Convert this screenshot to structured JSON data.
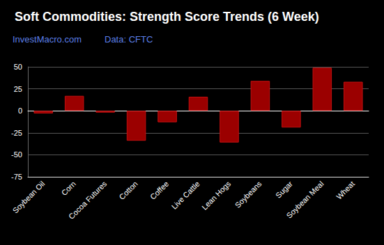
{
  "chart_data": {
    "type": "bar",
    "title": "Soft Commodities: Strength Score Trends (6 Week)",
    "subtitle": "InvestMacro.com",
    "source": "Data: CFTC",
    "categories": [
      "Soybean Oil",
      "Corn",
      "Cocoa Futures",
      "Cotton",
      "Coffee",
      "Live Cattle",
      "Lean Hogs",
      "Soybeans",
      "Sugar",
      "Soybean Meal",
      "Wheat"
    ],
    "values": [
      -3,
      17,
      -2,
      -34,
      -13,
      16,
      -36,
      34,
      -19,
      49,
      33
    ],
    "color": "#9b0000",
    "ylim": [
      -75,
      50
    ],
    "yticks": [
      -75,
      -50,
      -25,
      0,
      25,
      50
    ],
    "grid": true
  }
}
